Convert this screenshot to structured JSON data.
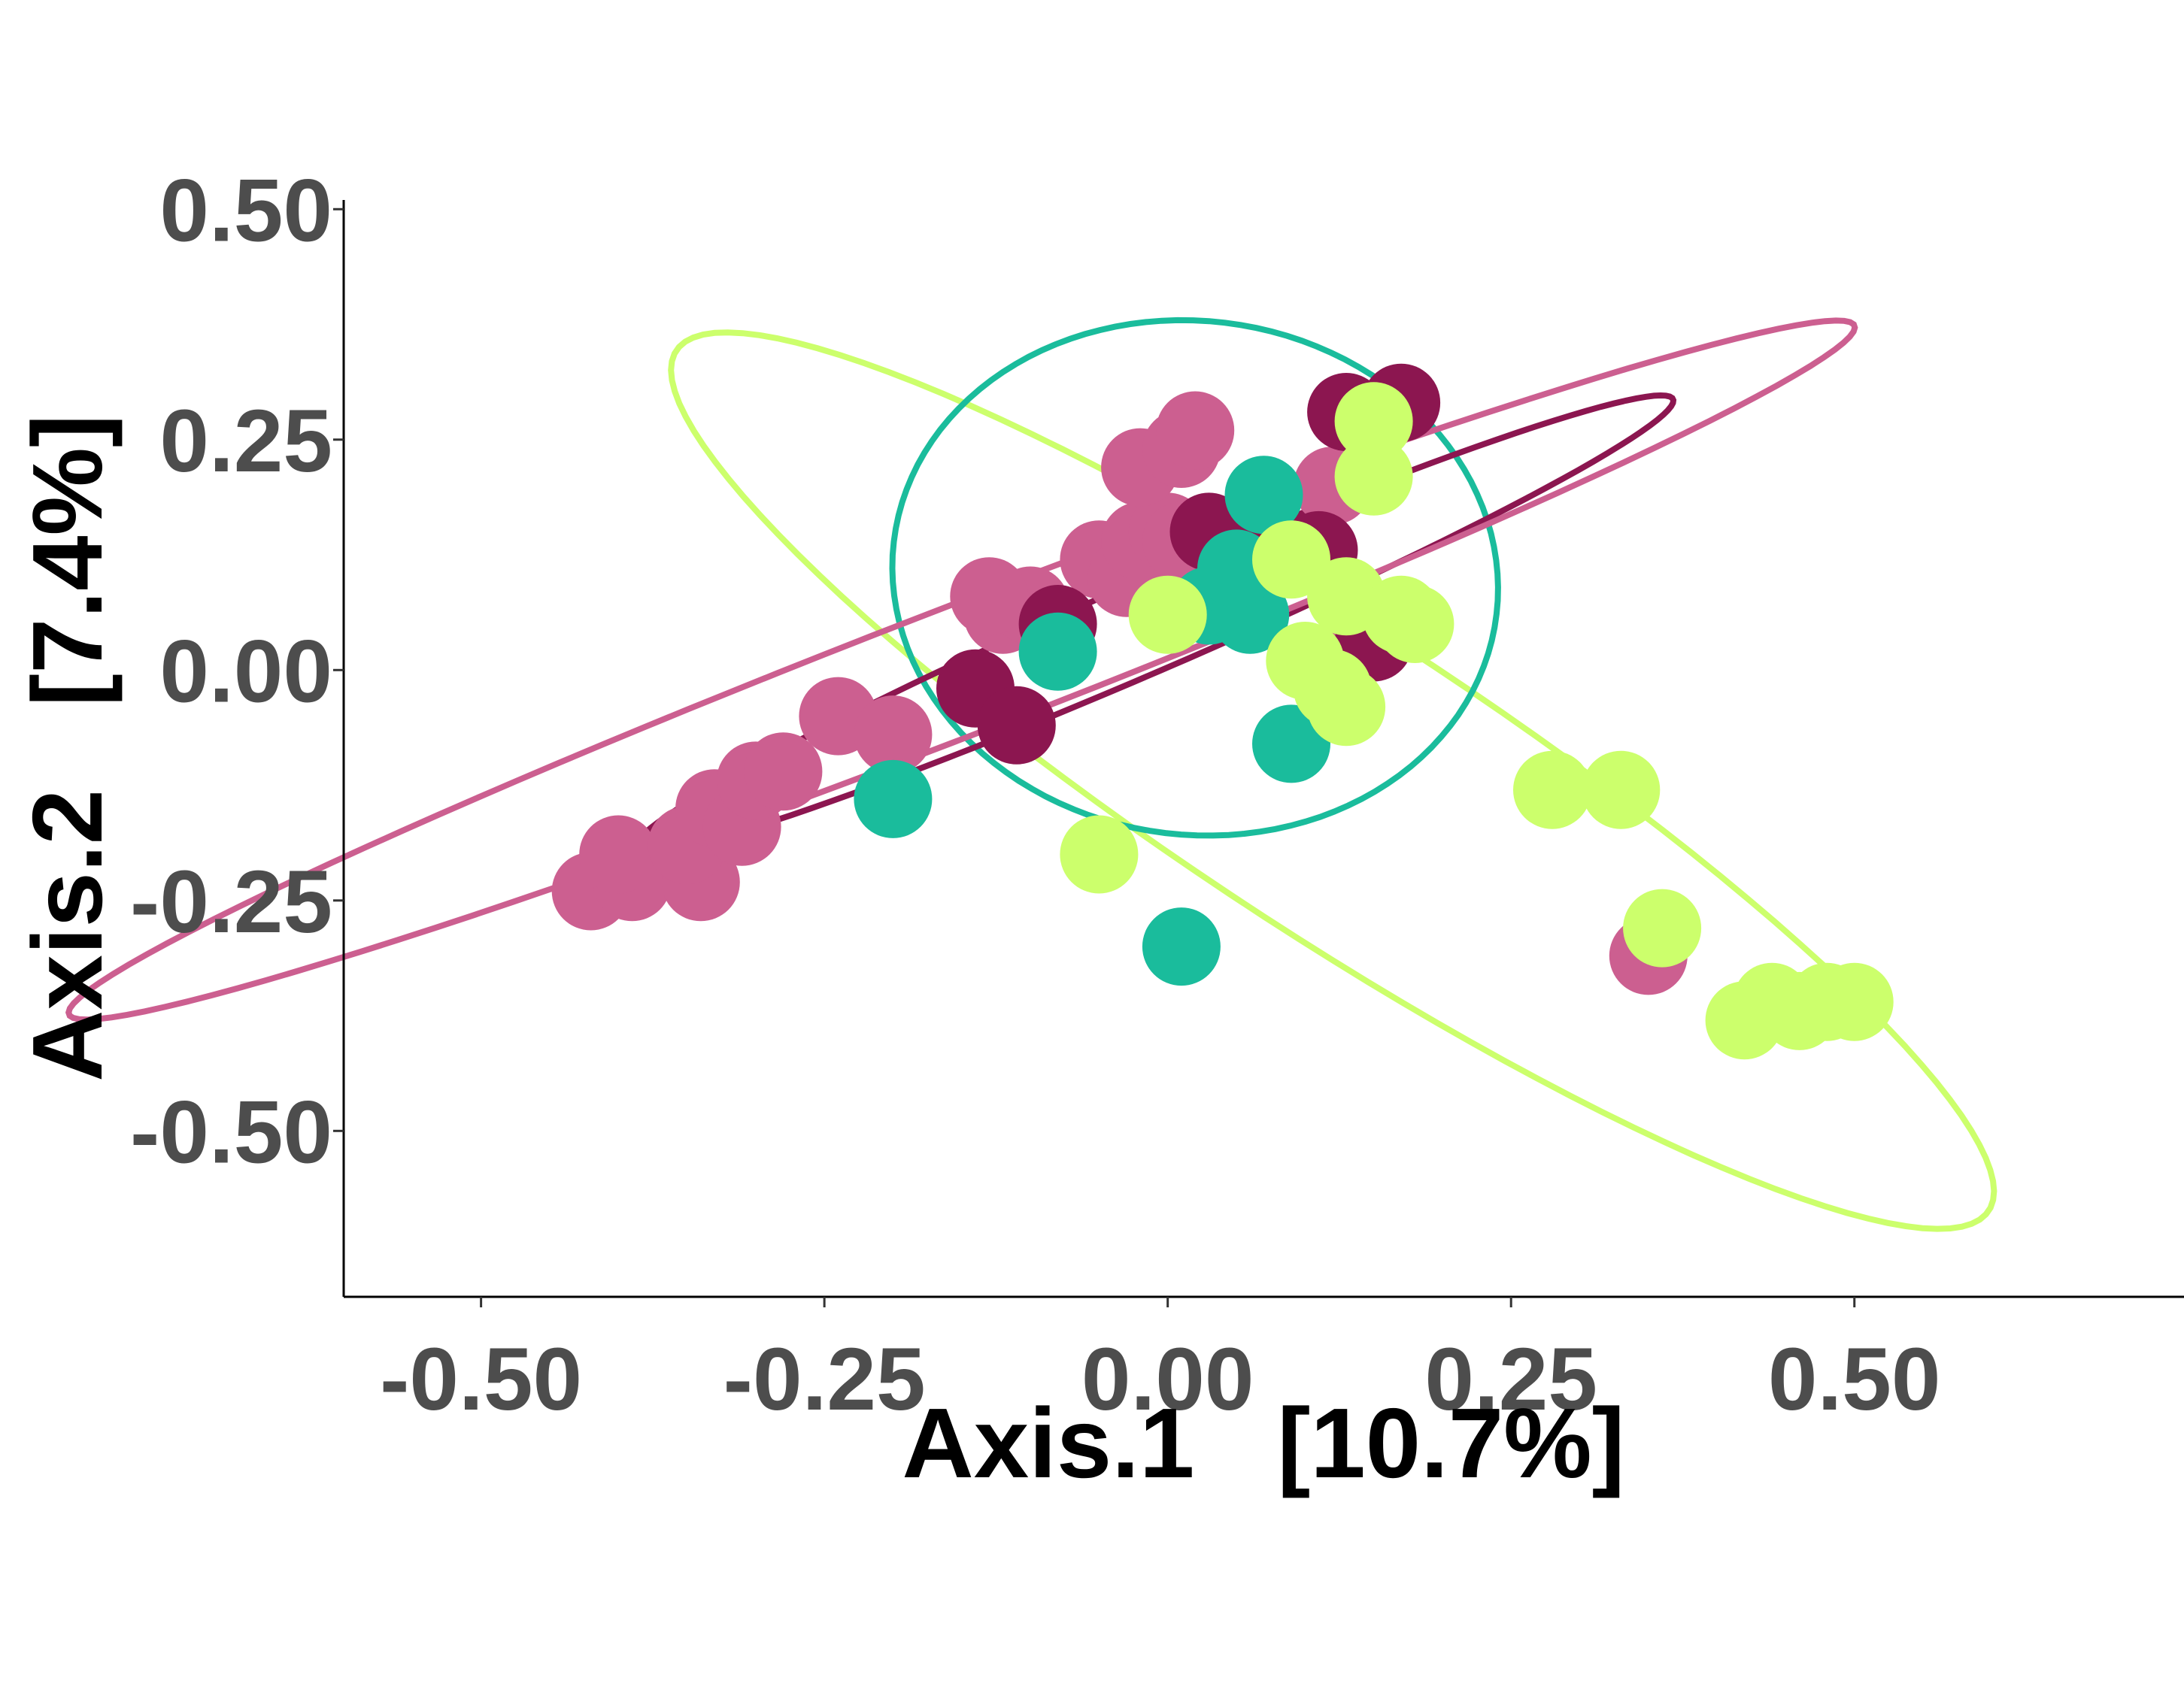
{
  "chart_data": {
    "type": "scatter",
    "title": "",
    "xlabel": "Axis.1   [10.7%]",
    "ylabel": "Axis.2   [7.4%]",
    "xlim": [
      -0.6,
      0.74
    ],
    "ylim": [
      -0.68,
      0.51
    ],
    "x_ticks": [
      {
        "value": -0.5,
        "label": "-0.50"
      },
      {
        "value": -0.25,
        "label": "-0.25"
      },
      {
        "value": 0.0,
        "label": "0.00"
      },
      {
        "value": 0.25,
        "label": "0.25"
      },
      {
        "value": 0.5,
        "label": "0.50"
      }
    ],
    "y_ticks": [
      {
        "value": 0.5,
        "label": "0.50"
      },
      {
        "value": 0.25,
        "label": "0.25"
      },
      {
        "value": 0.0,
        "label": "0.00"
      },
      {
        "value": -0.25,
        "label": "-0.25"
      },
      {
        "value": -0.5,
        "label": "-0.50"
      }
    ],
    "grid": false,
    "legend": "none",
    "series": [
      {
        "color": "#cc5f90",
        "points": [
          [
            -0.42,
            -0.24
          ],
          [
            -0.39,
            -0.23
          ],
          [
            -0.4,
            -0.2
          ],
          [
            -0.34,
            -0.23
          ],
          [
            -0.35,
            -0.19
          ],
          [
            -0.33,
            -0.15
          ],
          [
            -0.31,
            -0.17
          ],
          [
            -0.3,
            -0.12
          ],
          [
            -0.28,
            -0.11
          ],
          [
            -0.24,
            -0.05
          ],
          [
            -0.2,
            -0.07
          ],
          [
            -0.12,
            0.06
          ],
          [
            -0.1,
            0.07
          ],
          [
            -0.13,
            0.08
          ],
          [
            -0.05,
            0.12
          ],
          [
            -0.03,
            0.1
          ],
          [
            -0.02,
            0.14
          ],
          [
            0.0,
            0.15
          ],
          [
            0.01,
            0.14
          ],
          [
            -0.02,
            0.22
          ],
          [
            0.01,
            0.24
          ],
          [
            0.02,
            0.26
          ],
          [
            0.12,
            0.2
          ],
          [
            0.14,
            0.04
          ],
          [
            0.35,
            -0.31
          ]
        ]
      },
      {
        "color": "#8c1650",
        "points": [
          [
            -0.14,
            -0.02
          ],
          [
            -0.11,
            -0.06
          ],
          [
            -0.08,
            0.05
          ],
          [
            0.06,
            0.15
          ],
          [
            0.07,
            0.14
          ],
          [
            0.11,
            0.13
          ],
          [
            0.13,
            0.28
          ],
          [
            0.17,
            0.29
          ],
          [
            0.03,
            0.15
          ],
          [
            0.15,
            0.03
          ]
        ]
      },
      {
        "color": "#1abc9c",
        "points": [
          [
            -0.2,
            -0.14
          ],
          [
            -0.08,
            0.02
          ],
          [
            0.03,
            0.07
          ],
          [
            0.06,
            0.06
          ],
          [
            0.07,
            0.19
          ],
          [
            0.09,
            -0.08
          ],
          [
            0.01,
            -0.3
          ],
          [
            0.05,
            0.11
          ]
        ]
      },
      {
        "color": "#ccff6c",
        "points": [
          [
            0.15,
            0.27
          ],
          [
            0.15,
            0.21
          ],
          [
            0.09,
            0.12
          ],
          [
            0.13,
            0.08
          ],
          [
            0.17,
            0.06
          ],
          [
            0.18,
            0.05
          ],
          [
            0.1,
            0.01
          ],
          [
            0.13,
            -0.04
          ],
          [
            0.12,
            -0.02
          ],
          [
            -0.05,
            -0.2
          ],
          [
            0.28,
            -0.13
          ],
          [
            0.33,
            -0.13
          ],
          [
            0.36,
            -0.28
          ],
          [
            0.42,
            -0.38
          ],
          [
            0.44,
            -0.36
          ],
          [
            0.46,
            -0.37
          ],
          [
            0.48,
            -0.36
          ],
          [
            0.5,
            -0.36
          ],
          [
            0.0,
            0.06
          ]
        ]
      }
    ],
    "ellipses": [
      {
        "color": "#ccff6c",
        "center": [
          0.12,
          -0.12
        ],
        "rx": 0.67,
        "ry": 0.14,
        "angle_deg": -45.3
      },
      {
        "color": "#1abc9c",
        "center": [
          0.02,
          0.1
        ],
        "rx": 0.22,
        "ry": 0.28,
        "angle_deg": 5
      },
      {
        "color": "#8c1650",
        "center": [
          -0.01,
          0.05
        ],
        "rx": 0.45,
        "ry": 0.045,
        "angle_deg": 33
      },
      {
        "color": "#cc5f90",
        "center": [
          -0.15,
          0.0
        ],
        "rx": 0.75,
        "ry": 0.065,
        "angle_deg": 30
      }
    ]
  }
}
